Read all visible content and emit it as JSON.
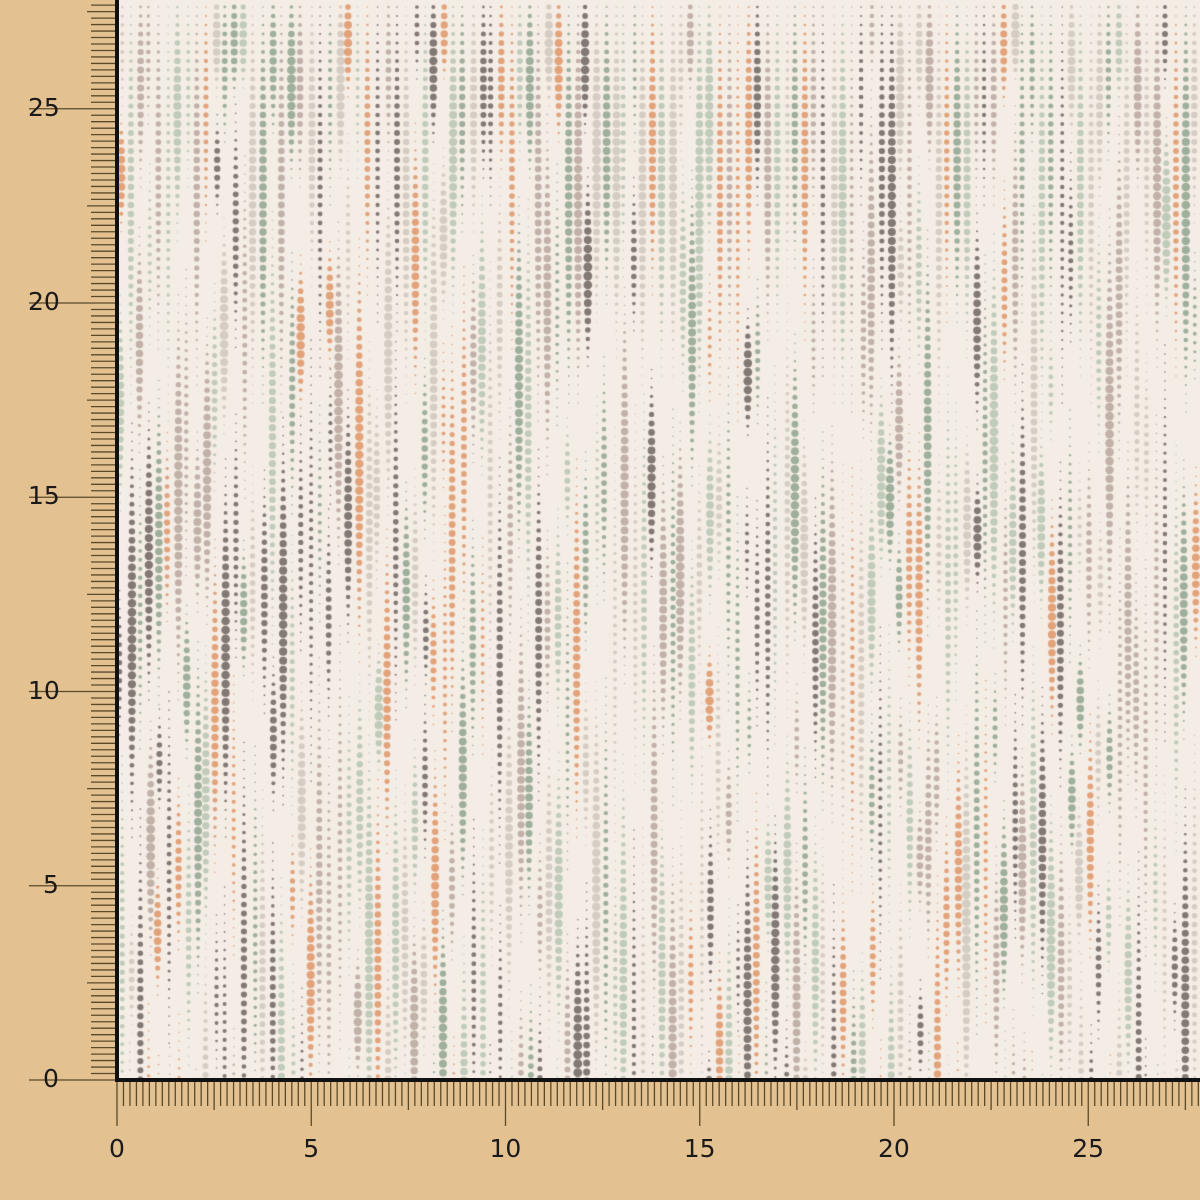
{
  "colors": {
    "background": "#e4c190",
    "fabric": "#f4ede6",
    "dots": [
      "#8fa58e",
      "#b7c5b3",
      "#6f6561",
      "#b8a79d",
      "#df9668",
      "#cfc8bd"
    ]
  },
  "ruler": {
    "x_labels": [
      "0",
      "5",
      "10",
      "15",
      "20",
      "25"
    ],
    "y_labels": [
      "0",
      "5",
      "10",
      "15",
      "20",
      "25"
    ]
  }
}
